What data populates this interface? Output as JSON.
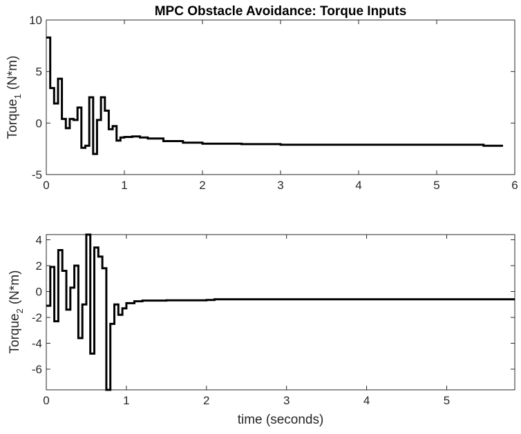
{
  "chart_data": [
    {
      "type": "line",
      "title": "MPC Obstacle Avoidance: Torque Inputs",
      "xlabel": "",
      "ylabel": "Torque",
      "ylabel_sub": "1",
      "ylabel_unit": "(N*m)",
      "xlim": [
        0,
        6
      ],
      "ylim": [
        -5,
        10
      ],
      "xticks": [
        "0",
        "1",
        "2",
        "3",
        "4",
        "5",
        "6"
      ],
      "yticks": [
        "-5",
        "0",
        "5",
        "10"
      ],
      "step": true,
      "line_color": "#000000",
      "series": [
        {
          "x": [
            0,
            0.05,
            0.1,
            0.15,
            0.2,
            0.25,
            0.3,
            0.35,
            0.4,
            0.45,
            0.5,
            0.55,
            0.6,
            0.65,
            0.7,
            0.75,
            0.8,
            0.85,
            0.9,
            0.95,
            1.0,
            1.1,
            1.2,
            1.3,
            1.5,
            1.75,
            2.0,
            2.5,
            3.0,
            4.0,
            5.0,
            5.6,
            5.85
          ],
          "y": [
            8.3,
            3.4,
            1.9,
            4.3,
            0.4,
            -0.5,
            0.4,
            0.3,
            1.5,
            -2.4,
            -2.2,
            2.5,
            -3.0,
            0.3,
            2.5,
            1.2,
            -0.6,
            -0.3,
            -1.7,
            -1.4,
            -1.35,
            -1.3,
            -1.4,
            -1.5,
            -1.75,
            -1.9,
            -2.0,
            -2.05,
            -2.1,
            -2.1,
            -2.1,
            -2.2,
            -2.2
          ]
        }
      ]
    },
    {
      "type": "line",
      "title": "",
      "xlabel": "time (seconds)",
      "ylabel": "Torque",
      "ylabel_sub": "2",
      "ylabel_unit": "(N*m)",
      "xlim": [
        0,
        5.85
      ],
      "ylim": [
        -7.6,
        4.4
      ],
      "xticks": [
        "0",
        "1",
        "2",
        "3",
        "4",
        "5"
      ],
      "yticks": [
        "-6",
        "-4",
        "-2",
        "0",
        "2",
        "4"
      ],
      "step": true,
      "line_color": "#000000",
      "series": [
        {
          "x": [
            0,
            0.05,
            0.1,
            0.15,
            0.2,
            0.25,
            0.3,
            0.35,
            0.4,
            0.45,
            0.5,
            0.55,
            0.6,
            0.65,
            0.7,
            0.75,
            0.8,
            0.85,
            0.9,
            0.95,
            1.0,
            1.1,
            1.2,
            1.5,
            2.0,
            2.1,
            3.0,
            4.0,
            5.0,
            5.85
          ],
          "y": [
            -1.1,
            1.9,
            -2.3,
            3.2,
            1.6,
            -1.4,
            0.3,
            2.0,
            -3.6,
            -1.0,
            4.4,
            -4.8,
            3.4,
            2.7,
            1.8,
            -7.6,
            -2.5,
            -1.0,
            -1.8,
            -1.3,
            -0.9,
            -0.75,
            -0.7,
            -0.68,
            -0.65,
            -0.6,
            -0.6,
            -0.6,
            -0.6,
            -0.6
          ]
        }
      ]
    }
  ]
}
